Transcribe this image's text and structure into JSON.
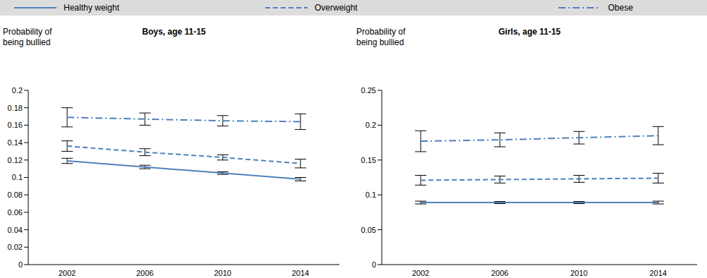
{
  "chart_data": [
    {
      "type": "line",
      "title": "Boys, age 11-15",
      "y_label": "Probability of being bullied",
      "legend": "top",
      "categories": [
        "2002",
        "2006",
        "2010",
        "2014"
      ],
      "ylim": [
        0,
        0.2
      ],
      "yticks": [
        0,
        0.02,
        0.04,
        0.06,
        0.08,
        0.1,
        0.12,
        0.14,
        0.16,
        0.18,
        0.2
      ],
      "series": [
        {
          "name": "Healthy weight",
          "color": "#4f81bd",
          "line_style": "solid",
          "values": [
            0.119,
            0.112,
            0.105,
            0.098
          ],
          "errors": [
            0.003,
            0.002,
            0.0015,
            0.002
          ]
        },
        {
          "name": "Overweight",
          "color": "#4f81bd",
          "line_style": "dashed",
          "values": [
            0.136,
            0.129,
            0.123,
            0.116
          ],
          "errors": [
            0.006,
            0.004,
            0.003,
            0.005
          ]
        },
        {
          "name": "Obese",
          "color": "#4f81bd",
          "line_style": "dashdot",
          "values": [
            0.169,
            0.167,
            0.165,
            0.164
          ],
          "errors": [
            0.011,
            0.007,
            0.006,
            0.009
          ]
        }
      ]
    },
    {
      "type": "line",
      "title": "Girls, age 11-15",
      "y_label": "Probability of being bullied",
      "categories": [
        "2002",
        "2006",
        "2010",
        "2014"
      ],
      "ylim": [
        0,
        0.25
      ],
      "yticks": [
        0,
        0.05,
        0.1,
        0.15,
        0.2,
        0.25
      ],
      "series": [
        {
          "name": "Healthy weight",
          "color": "#4f81bd",
          "line_style": "solid",
          "values": [
            0.089,
            0.089,
            0.089,
            0.089
          ],
          "errors": [
            0.002,
            0.0015,
            0.0015,
            0.002
          ]
        },
        {
          "name": "Overweight",
          "color": "#4f81bd",
          "line_style": "dashed",
          "values": [
            0.121,
            0.122,
            0.123,
            0.124
          ],
          "errors": [
            0.007,
            0.005,
            0.005,
            0.007
          ]
        },
        {
          "name": "Obese",
          "color": "#4f81bd",
          "line_style": "dashdot",
          "values": [
            0.177,
            0.179,
            0.182,
            0.185
          ],
          "errors": [
            0.015,
            0.01,
            0.009,
            0.013
          ]
        }
      ]
    }
  ]
}
